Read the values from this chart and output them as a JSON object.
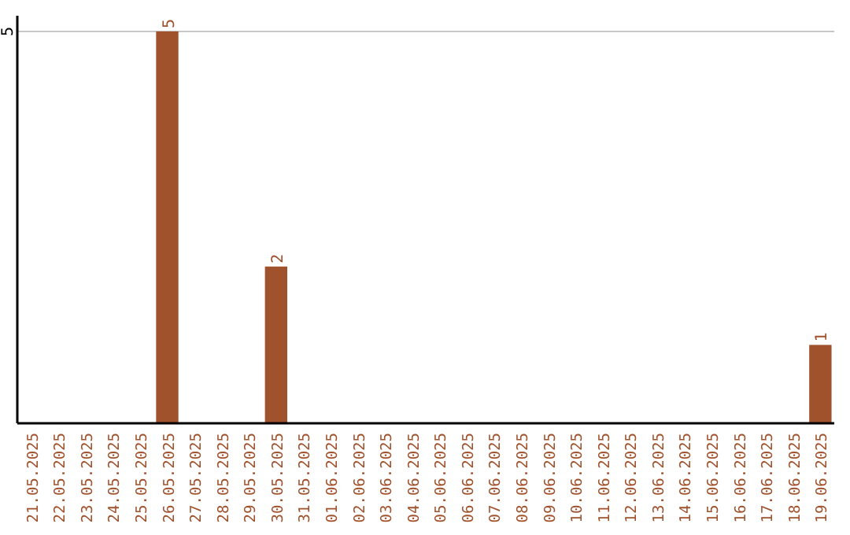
{
  "chart_data": {
    "type": "bar",
    "categories": [
      "21.05.2025",
      "22.05.2025",
      "23.05.2025",
      "24.05.2025",
      "25.05.2025",
      "26.05.2025",
      "27.05.2025",
      "28.05.2025",
      "29.05.2025",
      "30.05.2025",
      "31.05.2025",
      "01.06.2025",
      "02.06.2025",
      "03.06.2025",
      "04.06.2025",
      "05.06.2025",
      "06.06.2025",
      "07.06.2025",
      "08.06.2025",
      "09.06.2025",
      "10.06.2025",
      "11.06.2025",
      "12.06.2025",
      "13.06.2025",
      "14.06.2025",
      "15.06.2025",
      "16.06.2025",
      "17.06.2025",
      "18.06.2025",
      "19.06.2025"
    ],
    "values": [
      0,
      0,
      0,
      0,
      0,
      5,
      0,
      0,
      0,
      2,
      0,
      0,
      0,
      0,
      0,
      0,
      0,
      0,
      0,
      0,
      0,
      0,
      0,
      0,
      0,
      0,
      0,
      0,
      0,
      1
    ],
    "value_labels": [
      null,
      null,
      null,
      null,
      null,
      "5",
      null,
      null,
      null,
      "2",
      null,
      null,
      null,
      null,
      null,
      null,
      null,
      null,
      null,
      null,
      null,
      null,
      null,
      null,
      null,
      null,
      null,
      null,
      null,
      "1"
    ],
    "color": "#a0522d",
    "ylim": [
      0,
      5.2
    ],
    "yticks": [
      5
    ],
    "grid": "y"
  }
}
